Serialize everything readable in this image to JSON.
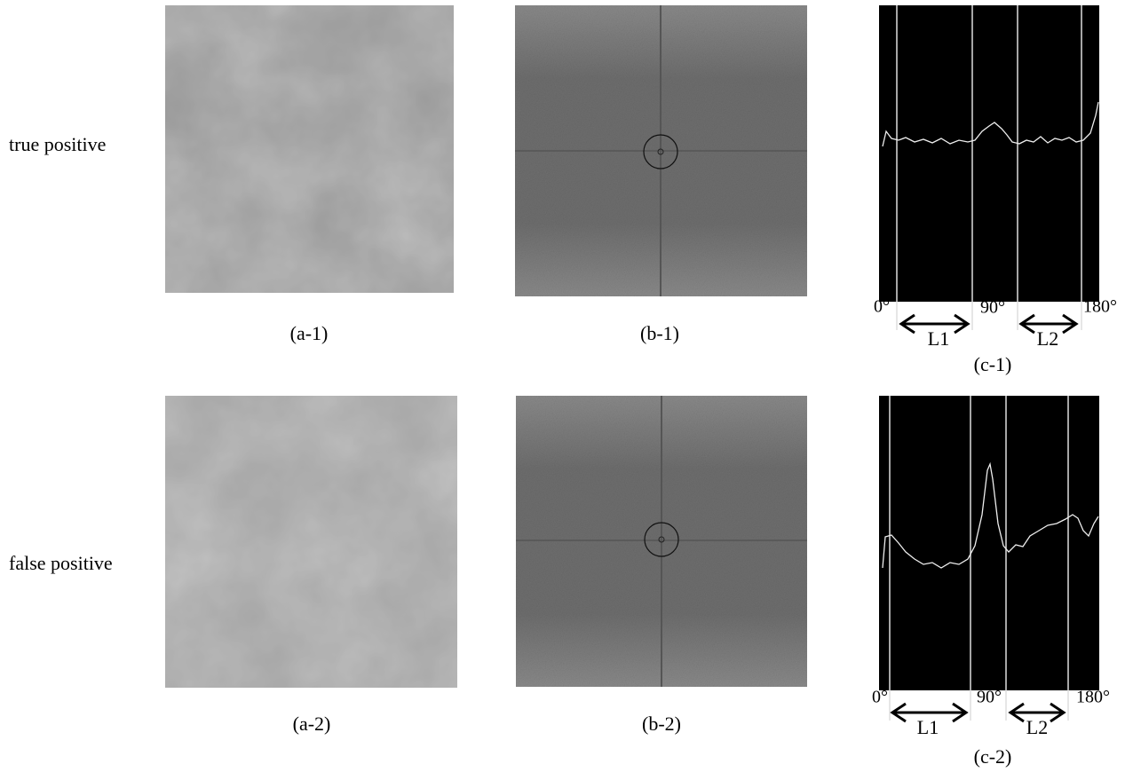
{
  "rows": [
    {
      "label": "true positive",
      "captions": [
        "(a-1)",
        "(b-1)",
        "(c-1)"
      ],
      "plot": {
        "start": "0°",
        "middle": "90°",
        "end": "180°",
        "range1": "L1",
        "range2": "L2"
      }
    },
    {
      "label": "false positive",
      "captions": [
        "(a-2)",
        "(b-2)",
        "(c-2)"
      ],
      "plot": {
        "start": "0°",
        "middle": "90°",
        "end": "180°",
        "range1": "L1",
        "range2": "L2"
      }
    }
  ]
}
